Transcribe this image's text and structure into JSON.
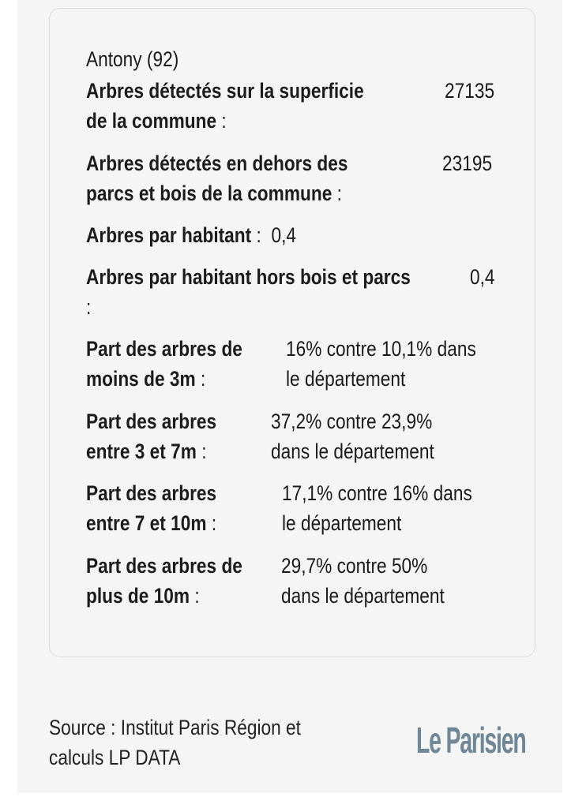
{
  "commune": "Antony (92)",
  "rows": [
    {
      "label_lines": [
        "Arbres détectés sur la superficie",
        "de la commune"
      ],
      "colon": ":",
      "value_lines": [
        "27135"
      ]
    },
    {
      "label_lines": [
        "Arbres détectés en dehors des",
        "parcs et bois de la commune"
      ],
      "colon": ":",
      "value_lines": [
        "23195"
      ]
    },
    {
      "label_lines": [
        "Arbres par habitant"
      ],
      "colon": ":",
      "value_lines": [
        "0,4"
      ]
    },
    {
      "label_lines": [
        "Arbres par habitant hors bois et parcs"
      ],
      "colon": ":",
      "value_lines": [
        "0,4"
      ]
    },
    {
      "label_lines": [
        "Part des arbres de",
        "moins de 3m"
      ],
      "colon": ":",
      "value_lines": [
        "16% contre 10,1% dans",
        "le département"
      ]
    },
    {
      "label_lines": [
        "Part des arbres",
        "entre 3 et 7m"
      ],
      "colon": ":",
      "value_lines": [
        "37,2% contre 23,9%",
        "dans le département"
      ]
    },
    {
      "label_lines": [
        "Part des arbres",
        "entre 7 et 10m"
      ],
      "colon": ":",
      "value_lines": [
        "17,1% contre 16% dans",
        "le département"
      ]
    },
    {
      "label_lines": [
        "Part des arbres de",
        "plus de 10m"
      ],
      "colon": ":",
      "value_lines": [
        "29,7% contre 50%",
        "dans le département"
      ]
    }
  ],
  "source_lines": [
    "Source : Institut Paris Région et",
    "calculs LP DATA"
  ],
  "logo": "Le Parisien",
  "colors": {
    "background": "#f5f5f5",
    "text": "#1a1a1a",
    "logo": "#6f8796"
  }
}
